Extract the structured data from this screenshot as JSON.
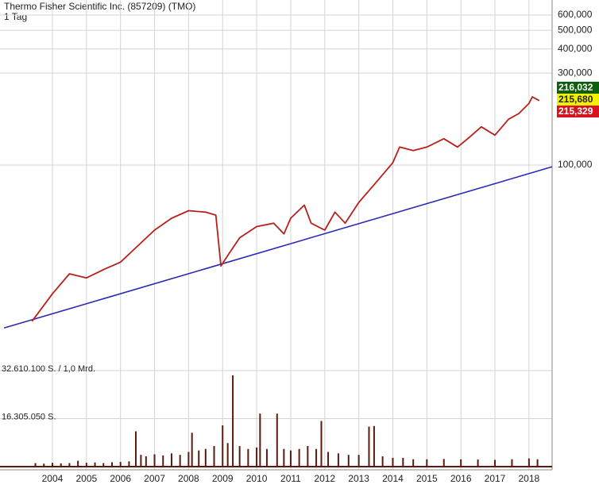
{
  "chart_data": {
    "type": "line",
    "title": "Thermo Fisher Scientific Inc. (857209) (TMO)",
    "subtitle": "1 Tag",
    "log_scale": true,
    "grid": true,
    "color": "#b8201a",
    "xlim": [
      2002.46,
      2018.68
    ],
    "xticks": [
      2004,
      2005,
      2006,
      2007,
      2008,
      2009,
      2010,
      2011,
      2012,
      2013,
      2014,
      2015,
      2016,
      2017,
      2018
    ],
    "ylim": [
      10,
      718
    ],
    "yticks": [
      {
        "value": 600,
        "label": "600,000"
      },
      {
        "value": 500,
        "label": "500,000"
      },
      {
        "value": 400,
        "label": "400,000"
      },
      {
        "value": 300,
        "label": "300,000"
      },
      {
        "value": 100,
        "label": "100,000"
      }
    ],
    "x": [
      2003.4,
      2004.0,
      2004.5,
      2005.0,
      2005.5,
      2006.0,
      2006.5,
      2007.0,
      2007.5,
      2008.0,
      2008.5,
      2008.8,
      2008.95,
      2009.2,
      2009.5,
      2010.0,
      2010.5,
      2010.8,
      2011.0,
      2011.4,
      2011.6,
      2012.0,
      2012.3,
      2012.6,
      2013.0,
      2013.5,
      2014.0,
      2014.2,
      2014.6,
      2015.0,
      2015.5,
      2015.9,
      2016.2,
      2016.6,
      2017.0,
      2017.4,
      2017.7,
      2018.0,
      2018.1,
      2018.3
    ],
    "values": [
      15.5,
      21.5,
      27.3,
      26,
      28.7,
      31.4,
      38,
      46,
      53,
      58,
      57,
      55,
      30,
      35,
      42,
      48,
      50,
      44,
      53,
      62,
      50,
      46,
      57,
      50,
      64,
      81,
      103,
      124,
      119,
      124,
      137,
      124,
      137,
      158,
      143,
      173,
      185,
      209,
      226,
      216
    ],
    "trend_line": {
      "color": "#2a2ab8",
      "x": [
        2002.58,
        2018.68
      ],
      "values": [
        14.3,
        98
      ]
    },
    "price_labels": [
      {
        "value": 216.032,
        "label": "216,032",
        "color": "#0d5e0d"
      },
      {
        "value": 215.68,
        "label": "215,680",
        "color": "#f2f200"
      },
      {
        "value": 215.329,
        "label": "215,329",
        "color": "#d4141e"
      }
    ],
    "volume": {
      "color": "#5a1a10",
      "ylim": [
        0,
        32610100
      ],
      "yticks": [
        {
          "value": 32610100,
          "label": "32.610.100 S. / 1,0 Mrd."
        },
        {
          "value": 16305050,
          "label": "16.305.050 S."
        }
      ],
      "x": [
        2003.5,
        2003.75,
        2004,
        2004.25,
        2004.5,
        2004.75,
        2005,
        2005.25,
        2005.5,
        2005.75,
        2006,
        2006.25,
        2006.45,
        2006.6,
        2006.75,
        2007,
        2007.25,
        2007.5,
        2007.75,
        2008,
        2008.1,
        2008.3,
        2008.5,
        2008.75,
        2009.0,
        2009.15,
        2009.3,
        2009.5,
        2009.75,
        2010,
        2010.1,
        2010.3,
        2010.6,
        2010.8,
        2011,
        2011.25,
        2011.5,
        2011.75,
        2011.9,
        2012.1,
        2012.4,
        2012.7,
        2013,
        2013.3,
        2013.45,
        2013.7,
        2014,
        2014.3,
        2014.6,
        2015,
        2015.5,
        2016,
        2016.5,
        2017,
        2017.5,
        2018,
        2018.25
      ],
      "values": [
        1200000,
        1000000,
        1300000,
        1100000,
        1200000,
        2000000,
        1300000,
        1400000,
        1200000,
        1500000,
        1600000,
        1800000,
        12000000,
        4000000,
        3500000,
        4200000,
        3800000,
        4500000,
        4000000,
        5000000,
        11500000,
        5500000,
        6000000,
        7000000,
        14000000,
        8000000,
        31000000,
        7000000,
        6000000,
        6500000,
        18000000,
        6000000,
        18000000,
        6000000,
        5500000,
        6000000,
        7000000,
        6000000,
        15500000,
        5000000,
        4500000,
        4000000,
        4000000,
        13600000,
        13800000,
        3500000,
        3000000,
        3000000,
        2500000,
        2500000,
        2600000,
        2500000,
        2400000,
        2300000,
        2500000,
        2800000,
        2500000
      ]
    }
  }
}
